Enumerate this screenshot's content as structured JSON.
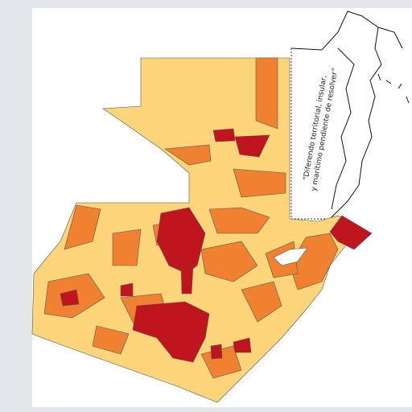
{
  "annotation": {
    "lines": [
      "“Diferendo territorial, insular,",
      "y marítimo pendiente de resolver”"
    ]
  }
}
